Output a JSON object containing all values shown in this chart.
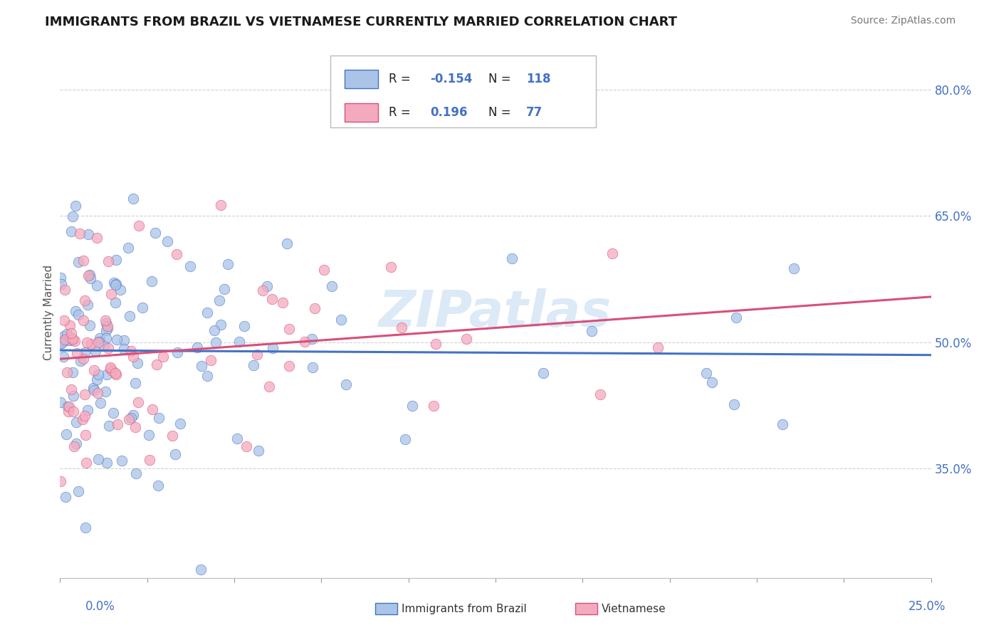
{
  "title": "IMMIGRANTS FROM BRAZIL VS VIETNAMESE CURRENTLY MARRIED CORRELATION CHART",
  "source": "Source: ZipAtlas.com",
  "ylabel": "Currently Married",
  "x_label_bottom_left": "0.0%",
  "x_label_bottom_right": "25.0%",
  "legend_brazil": "Immigrants from Brazil",
  "legend_vietnamese": "Vietnamese",
  "xlim": [
    0.0,
    25.0
  ],
  "ylim": [
    22.0,
    85.0
  ],
  "y_ticks": [
    35.0,
    50.0,
    65.0,
    80.0
  ],
  "y_tick_labels": [
    "35.0%",
    "50.0%",
    "65.0%",
    "80.0%"
  ],
  "brazil_fill_color": "#aac4e8",
  "vietnamese_fill_color": "#f4aabe",
  "brazil_line_color": "#4472c4",
  "vietnamese_line_color": "#d94f7a",
  "background_color": "#ffffff",
  "grid_color": "#cccccc",
  "title_color": "#1a1a1a",
  "watermark_text": "ZIPatlаs",
  "watermark_color": "#c0d8f0",
  "r_n_color": "#4472c4",
  "r_label_color": "#333333",
  "legend_r_brazil": "-0.154",
  "legend_n_brazil": "118",
  "legend_r_viet": "0.196",
  "legend_n_viet": "77"
}
